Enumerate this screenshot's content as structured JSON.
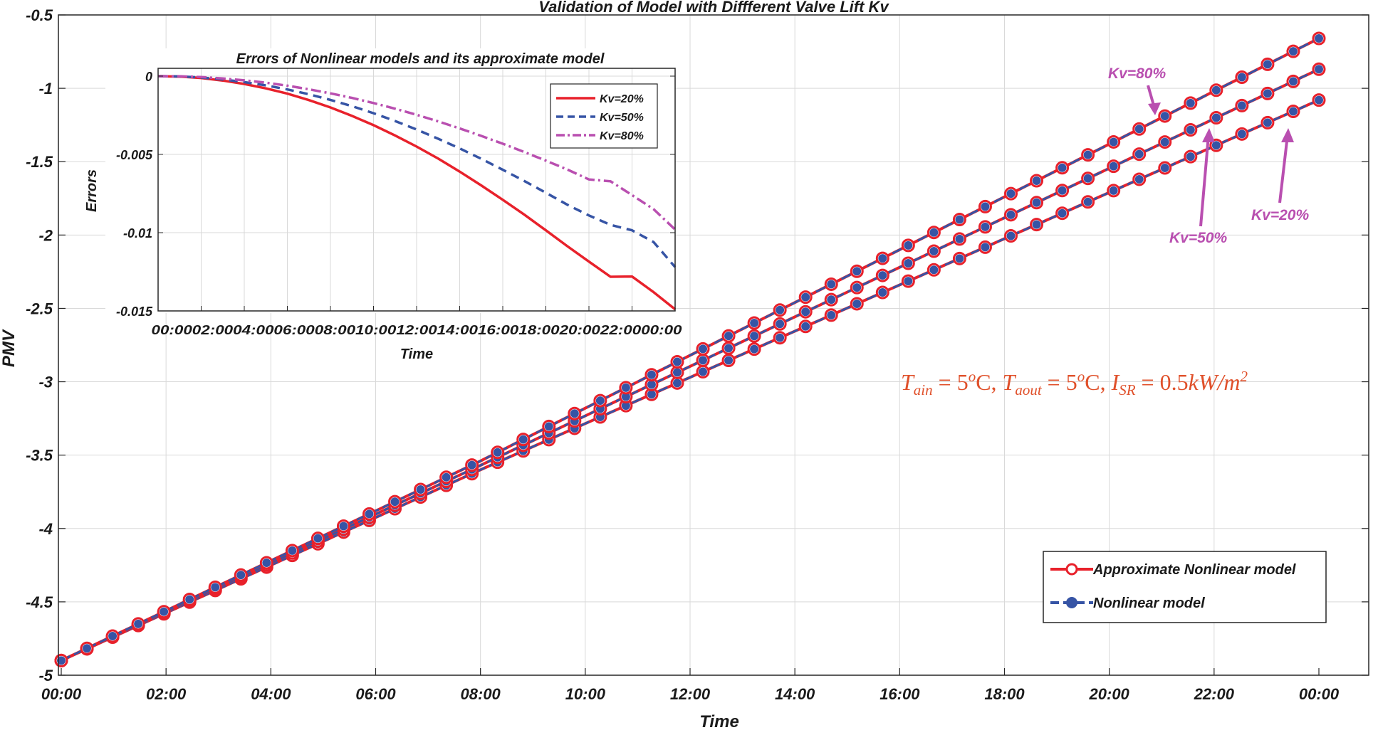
{
  "chart_data": [
    {
      "type": "line",
      "title": "Validation of Model with Diffferent Valve Lift Kv",
      "xlabel": "Time",
      "ylabel": "PMV",
      "x_ticks": [
        "00:00",
        "02:00",
        "04:00",
        "06:00",
        "08:00",
        "10:00",
        "12:00",
        "14:00",
        "16:00",
        "18:00",
        "20:00",
        "22:00",
        "00:00"
      ],
      "x_range_hours": [
        0,
        24
      ],
      "ylim": [
        -5,
        -0.5
      ],
      "y_ticks": [
        -0.5,
        -1,
        -1.5,
        -2,
        -2.5,
        -3,
        -3.5,
        -4,
        -4.5,
        -5
      ],
      "y_tick_labels": [
        "-0.5",
        "-1",
        "-1.5",
        "-2",
        "-2.5",
        "-3",
        "-3.5",
        "-4",
        "-4.5",
        "-5"
      ],
      "grid": true,
      "legend": {
        "position": "bottom-right",
        "entries": [
          {
            "label": "Approximate Nonlinear model",
            "color": "#e8212b",
            "marker": "open-circle"
          },
          {
            "label": "Nonlinear model",
            "color": "#3654a5",
            "marker": "filled-circle"
          }
        ]
      },
      "series_start": {
        "x": 0,
        "y": -4.9
      },
      "series": [
        {
          "name": "Kv=20%",
          "knee_x": 8,
          "knee_y": -3.6,
          "end_y": -1.08
        },
        {
          "name": "Kv=50%",
          "knee_x": 8,
          "knee_y": -3.57,
          "end_y": -0.87
        },
        {
          "name": "Kv=80%",
          "knee_x": 8,
          "knee_y": -3.54,
          "end_y": -0.66
        }
      ],
      "markers_count": 50,
      "annotations": [
        {
          "text": "Kv=80%",
          "color": "#b94fb0"
        },
        {
          "text": "Kv=50%",
          "color": "#b94fb0"
        },
        {
          "text": "Kv=20%",
          "color": "#b94fb0"
        }
      ],
      "equation": {
        "text": "T_ain = 5°C, T_aout = 5°C, I_SR = 0.5kW/m²",
        "color": "#e0502a",
        "parts": {
          "t": "T",
          "ain_sub": "ain",
          "eq1": " = 5",
          "o1": "o",
          "c1": "C, ",
          "aout_sub": "aout",
          "eq2": " = 5",
          "o2": "o",
          "c2": "C, ",
          "i": "I",
          "sr_sub": "SR",
          "eq3": " = 0.5",
          "unit": "kW/m",
          "sq": "2"
        }
      }
    },
    {
      "type": "line",
      "title": "Errors of Nonlinear models and its approximate model",
      "xlabel": "Time",
      "ylabel": "Errors",
      "x_ticks": [
        "00:00",
        "02:00",
        "04:00",
        "06:00",
        "08:00",
        "10:00",
        "12:00",
        "14:00",
        "16:00",
        "18:00",
        "20:00",
        "22:00",
        "00:00"
      ],
      "x_tick_text": "00:0002:0004:0006:0008:0010:0012:0014:0016:0018:0020:0022:0000:00",
      "x_range_hours": [
        0,
        24
      ],
      "ylim": [
        -0.015,
        0.0005
      ],
      "y_ticks": [
        0,
        -0.005,
        -0.01,
        -0.015
      ],
      "y_tick_labels": [
        "0",
        "-0.005",
        "-0.01",
        "-0.015"
      ],
      "legend": {
        "position": "top-right",
        "entries": [
          {
            "label": "Kv=20%",
            "color": "#e8212b",
            "style": "solid"
          },
          {
            "label": "Kv=50%",
            "color": "#3654a5",
            "style": "dashed"
          },
          {
            "label": "Kv=80%",
            "color": "#b94fb0",
            "style": "dashdot"
          }
        ]
      },
      "series": [
        {
          "name": "Kv=20%",
          "x": [
            0,
            1,
            2,
            3,
            4,
            5,
            6,
            7,
            8,
            9,
            10,
            11,
            12,
            13,
            14,
            15,
            16,
            17,
            18,
            19,
            20,
            21,
            22,
            23,
            24
          ],
          "y": [
            0,
            -3e-05,
            -0.00012,
            -0.00028,
            -0.0005,
            -0.00078,
            -0.00112,
            -0.00153,
            -0.002,
            -0.00254,
            -0.00313,
            -0.00379,
            -0.0045,
            -0.00527,
            -0.0061,
            -0.00698,
            -0.0079,
            -0.00885,
            -0.00985,
            -0.01087,
            -0.01185,
            -0.01282,
            -0.0128,
            -0.0138,
            -0.0149
          ]
        },
        {
          "name": "Kv=50%",
          "x": [
            0,
            1,
            2,
            3,
            4,
            5,
            6,
            7,
            8,
            9,
            10,
            11,
            12,
            13,
            14,
            15,
            16,
            17,
            18,
            19,
            20,
            21,
            22,
            23,
            24
          ],
          "y": [
            0,
            -2e-05,
            -9e-05,
            -0.00021,
            -0.00038,
            -0.00059,
            -0.00085,
            -0.00116,
            -0.00152,
            -0.00192,
            -0.00237,
            -0.00287,
            -0.00341,
            -0.004,
            -0.00462,
            -0.00528,
            -0.00598,
            -0.0067,
            -0.00745,
            -0.00822,
            -0.0089,
            -0.0095,
            -0.00985,
            -0.0106,
            -0.0122
          ]
        },
        {
          "name": "Kv=80%",
          "x": [
            0,
            1,
            2,
            3,
            4,
            5,
            6,
            7,
            8,
            9,
            10,
            11,
            12,
            13,
            14,
            15,
            16,
            17,
            18,
            19,
            20,
            21,
            22,
            23,
            24
          ],
          "y": [
            0,
            -1e-05,
            -6e-05,
            -0.00015,
            -0.00027,
            -0.00042,
            -0.00061,
            -0.00084,
            -0.0011,
            -0.00139,
            -0.00172,
            -0.00208,
            -0.00247,
            -0.00289,
            -0.00334,
            -0.00382,
            -0.00432,
            -0.00485,
            -0.0054,
            -0.00597,
            -0.0066,
            -0.00672,
            -0.0076,
            -0.0085,
            -0.0098
          ]
        }
      ]
    }
  ]
}
